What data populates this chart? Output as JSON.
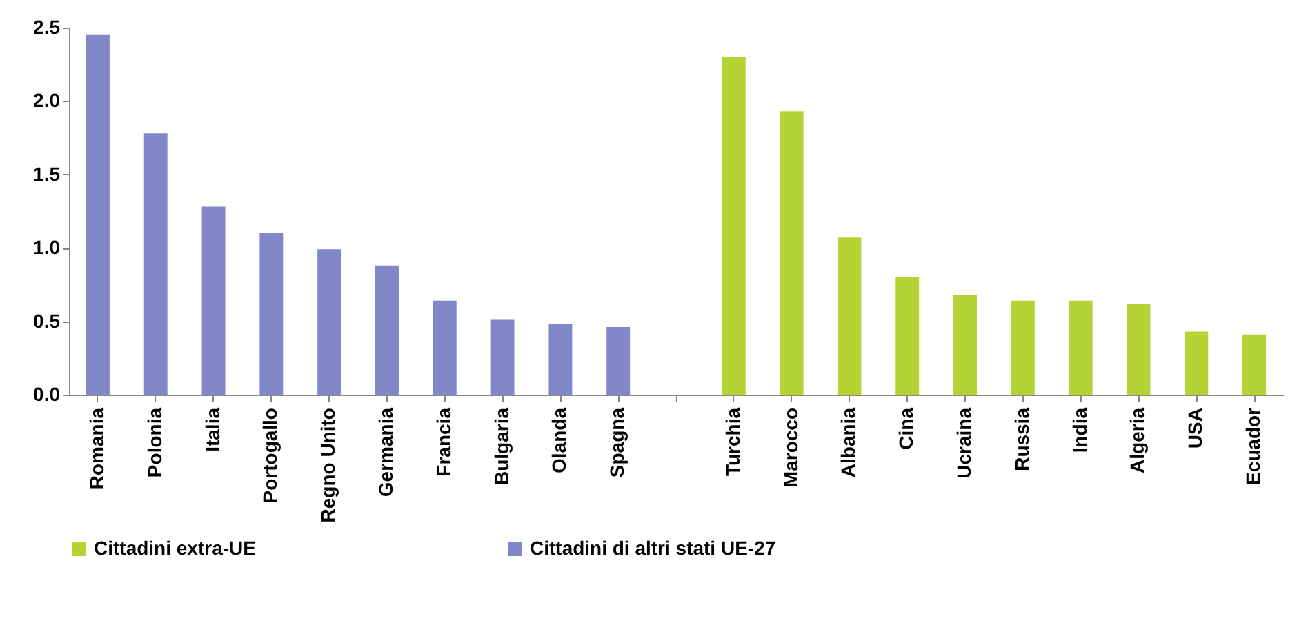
{
  "chart_data": {
    "type": "bar",
    "categories": [
      "Romania",
      "Polonia",
      "Italia",
      "Portogallo",
      "Regno Unito",
      "Germania",
      "Francia",
      "Bulgaria",
      "Olanda",
      "Spagna",
      null,
      "Turchia",
      "Marocco",
      "Albania",
      "Cina",
      "Ucraina",
      "Russia",
      "India",
      "Algeria",
      "USA",
      "Ecuador"
    ],
    "series": [
      {
        "name": "Cittadini extra-UE",
        "color": "#b5d334",
        "values": [
          null,
          null,
          null,
          null,
          null,
          null,
          null,
          null,
          null,
          null,
          null,
          2.3,
          1.93,
          1.07,
          0.8,
          0.68,
          0.64,
          0.64,
          0.62,
          0.43,
          0.41
        ]
      },
      {
        "name": "Cittadini di altri stati UE-27",
        "color": "#8088c8",
        "values": [
          2.45,
          1.78,
          1.28,
          1.1,
          0.99,
          0.88,
          0.64,
          0.51,
          0.48,
          0.46,
          null,
          null,
          null,
          null,
          null,
          null,
          null,
          null,
          null,
          null,
          null
        ]
      }
    ],
    "ylim": [
      0,
      2.5
    ],
    "yticks": [
      {
        "value": 0,
        "label": "0.0"
      },
      {
        "value": 0.5,
        "label": "0.5"
      },
      {
        "value": 1,
        "label": "1.0"
      },
      {
        "value": 1.5,
        "label": "1.5"
      },
      {
        "value": 2,
        "label": "2.0"
      },
      {
        "value": 2.5,
        "label": "2.5"
      }
    ],
    "legend": "bottom"
  }
}
